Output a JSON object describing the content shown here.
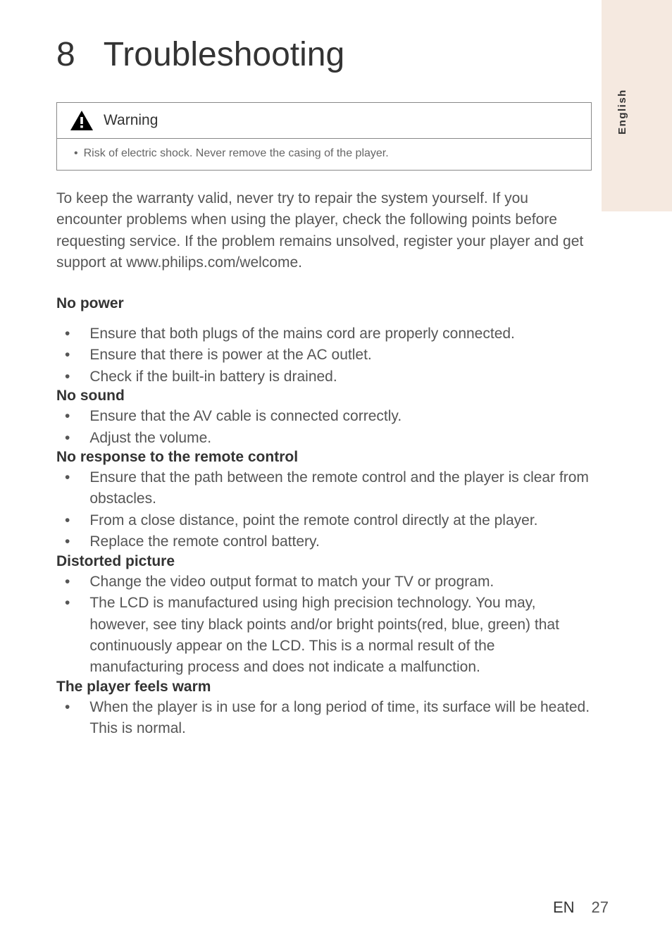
{
  "meta": {
    "language_tab": "English",
    "footer_lang": "EN",
    "page_number": "27"
  },
  "chapter": {
    "number": "8",
    "title": "Troubleshooting"
  },
  "warning": {
    "label": "Warning",
    "icon_name": "warning-triangle-icon",
    "bullet": "Risk of electric shock. Never remove the casing of the player."
  },
  "intro": "To keep the warranty valid, never try to repair the system yourself. If you encounter problems when using the player, check the following points before requesting service. If the problem remains unsolved, register your player and get support at www.philips.com/welcome.",
  "sections": [
    {
      "heading": "No power",
      "spaced": true,
      "items": [
        "Ensure that both plugs of the mains cord are properly connected.",
        "Ensure that there is power at the AC outlet.",
        "Check if the built-in battery is drained."
      ]
    },
    {
      "heading": "No sound",
      "spaced": false,
      "items": [
        "Ensure that the AV cable is connected correctly.",
        "Adjust the volume."
      ]
    },
    {
      "heading": "No response to the remote control",
      "spaced": false,
      "items": [
        "Ensure that the path between the remote control and the player is clear from obstacles.",
        "From a close distance, point the remote control directly at the player.",
        "Replace the remote control battery."
      ]
    },
    {
      "heading": "Distorted picture",
      "spaced": false,
      "items": [
        "Change the video output format to match your TV or program.",
        "The LCD is manufactured using high precision technology. You may, however, see tiny black points and/or bright points(red, blue, green) that continuously appear on the LCD. This is a normal result of the manufacturing process and does not indicate a malfunction."
      ]
    },
    {
      "heading": "The player feels warm",
      "spaced": false,
      "items": [
        "When the player is in use for a long period of time, its surface will be heated. This is normal."
      ]
    }
  ],
  "colors": {
    "background": "#ffffff",
    "language_tab_bg": "#f5e9e0",
    "heading_text": "#333333",
    "body_text": "#555555",
    "warning_text": "#666666",
    "border": "#888888",
    "warning_icon": "#000000"
  },
  "typography": {
    "chapter_title_size": 48,
    "body_size": 21,
    "warning_body_size": 16,
    "language_tab_size": 15,
    "footer_size": 22,
    "font_family": "Gill Sans"
  }
}
